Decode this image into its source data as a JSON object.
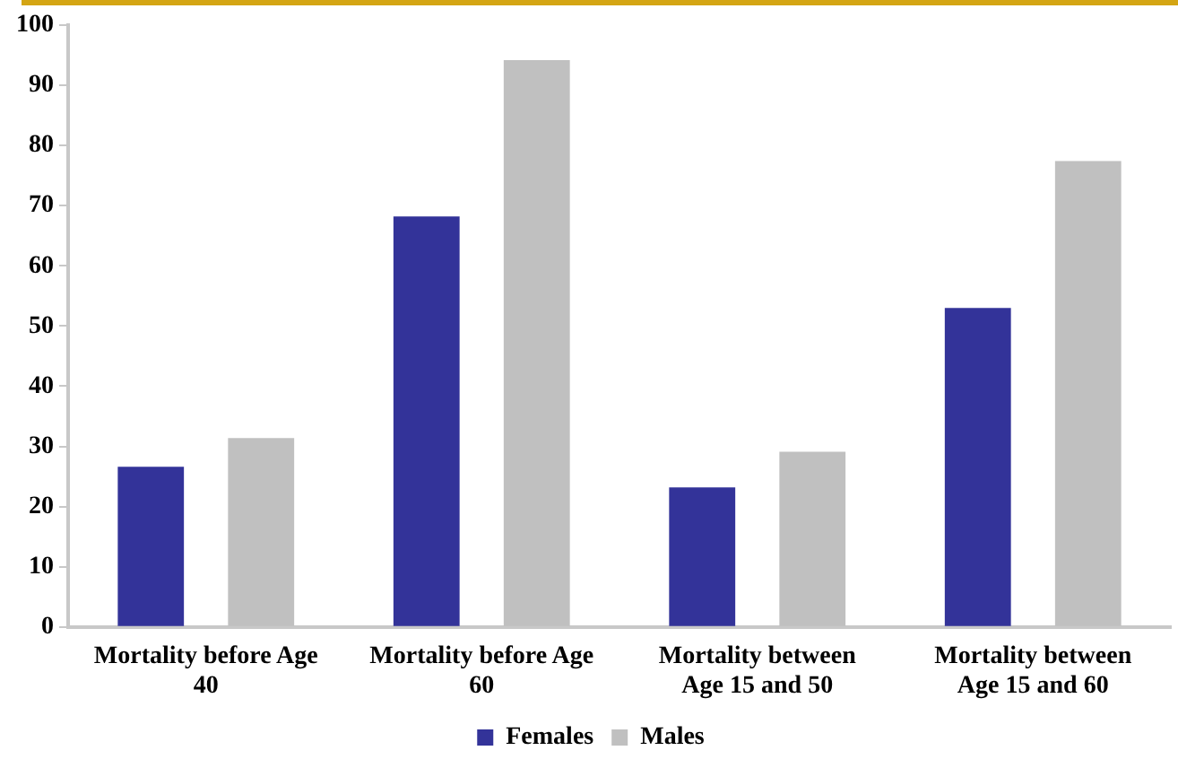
{
  "chart_data": {
    "type": "bar",
    "categories": [
      "Mortality before Age 40",
      "Mortality before Age 60",
      "Mortality between Age 15 and 50",
      "Mortality between Age 15 and 60"
    ],
    "series": [
      {
        "name": "Females",
        "color": "#333399",
        "values": [
          26.6,
          68.2,
          23.2,
          53.0
        ]
      },
      {
        "name": "Males",
        "color": "#c0c0c0",
        "values": [
          31.4,
          94.2,
          29.1,
          77.4
        ]
      }
    ],
    "ylim": [
      0,
      100
    ],
    "yticks": [
      0,
      10,
      20,
      30,
      40,
      50,
      60,
      70,
      80,
      90,
      100
    ],
    "grid": false,
    "legend": "bottom"
  }
}
